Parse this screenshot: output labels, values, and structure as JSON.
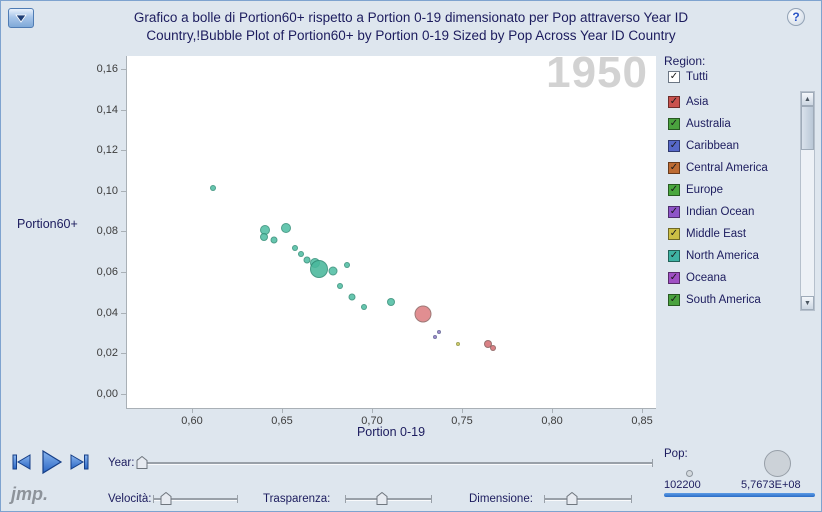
{
  "window": {
    "title_line1": "Grafico a bolle di Portion60+ rispetto a Portion 0-19 dimensionato per Pop attraverso Year ID",
    "title_line2": "Country,!Bubble Plot of Portion60+ by Portion 0-19 Sized by Pop Across Year ID Country",
    "help_glyph": "?"
  },
  "icons": {
    "check_glyph": "✓",
    "scroll_up_glyph": "▲",
    "scroll_down_glyph": "▼"
  },
  "colors": {
    "background": "#dee6ee",
    "title_text": "#1c1c5e",
    "watermark": "#d2d2d2",
    "axis": "#a9b0b6",
    "media_blue": "#2f6fc8",
    "pop_slider": "#2f78d2"
  },
  "chart_data": {
    "type": "scatter",
    "title": "Bubble Plot of Portion60+ by Portion 0-19 Sized by Pop Across Year ID Country",
    "xlabel": "Portion 0-19",
    "ylabel": "Portion60+",
    "watermark": "1950",
    "xlim": [
      0.5639,
      0.8583
    ],
    "ylim": [
      -0.0074,
      0.1664
    ],
    "grid": false,
    "x_ticks": [
      {
        "value": 0.6,
        "label": "0,60"
      },
      {
        "value": 0.65,
        "label": "0,65"
      },
      {
        "value": 0.7,
        "label": "0,70"
      },
      {
        "value": 0.75,
        "label": "0,75"
      },
      {
        "value": 0.8,
        "label": "0,80"
      },
      {
        "value": 0.85,
        "label": "0,85"
      }
    ],
    "y_ticks": [
      {
        "value": 0.0,
        "label": "0,00"
      },
      {
        "value": 0.02,
        "label": "0,02"
      },
      {
        "value": 0.04,
        "label": "0,04"
      },
      {
        "value": 0.06,
        "label": "0,06"
      },
      {
        "value": 0.08,
        "label": "0,08"
      },
      {
        "value": 0.1,
        "label": "0,10"
      },
      {
        "value": 0.12,
        "label": "0,12"
      },
      {
        "value": 0.14,
        "label": "0,14"
      },
      {
        "value": 0.16,
        "label": "0,16"
      }
    ],
    "points": [
      {
        "x": 0.6117,
        "y": 0.1014,
        "r": 3,
        "color": "#52bfa4"
      },
      {
        "x": 0.6406,
        "y": 0.0807,
        "r": 5,
        "color": "#52bfa4"
      },
      {
        "x": 0.64,
        "y": 0.0773,
        "r": 4,
        "color": "#52bfa4"
      },
      {
        "x": 0.6456,
        "y": 0.0758,
        "r": 3.5,
        "color": "#52bfa4"
      },
      {
        "x": 0.6522,
        "y": 0.0817,
        "r": 5,
        "color": "#52bfa4"
      },
      {
        "x": 0.6572,
        "y": 0.0719,
        "r": 3,
        "color": "#52bfa4"
      },
      {
        "x": 0.6606,
        "y": 0.0689,
        "r": 3,
        "color": "#52bfa4"
      },
      {
        "x": 0.6639,
        "y": 0.066,
        "r": 3.5,
        "color": "#52bfa4"
      },
      {
        "x": 0.6683,
        "y": 0.0645,
        "r": 5,
        "color": "#52bfa4"
      },
      {
        "x": 0.6706,
        "y": 0.0615,
        "r": 9,
        "color": "#49b89c"
      },
      {
        "x": 0.6783,
        "y": 0.0606,
        "r": 4.5,
        "color": "#52bfa4"
      },
      {
        "x": 0.6861,
        "y": 0.0635,
        "r": 3,
        "color": "#52bfa4"
      },
      {
        "x": 0.6822,
        "y": 0.0532,
        "r": 3,
        "color": "#52bfa4"
      },
      {
        "x": 0.6889,
        "y": 0.0478,
        "r": 3.5,
        "color": "#52bfa4"
      },
      {
        "x": 0.6956,
        "y": 0.0428,
        "r": 3,
        "color": "#52bfa4"
      },
      {
        "x": 0.7106,
        "y": 0.0453,
        "r": 4,
        "color": "#52bfa4"
      },
      {
        "x": 0.7283,
        "y": 0.0394,
        "r": 8.5,
        "color": "#dd7f82"
      },
      {
        "x": 0.735,
        "y": 0.0281,
        "r": 2,
        "color": "#9b7fd0"
      },
      {
        "x": 0.7372,
        "y": 0.0305,
        "r": 2,
        "color": "#9b7fd0"
      },
      {
        "x": 0.7478,
        "y": 0.0246,
        "r": 2,
        "color": "#ddcb55"
      },
      {
        "x": 0.7644,
        "y": 0.0246,
        "r": 4,
        "color": "#d67075"
      },
      {
        "x": 0.7672,
        "y": 0.0226,
        "r": 3,
        "color": "#d67075"
      }
    ]
  },
  "region_panel": {
    "label": "Region:",
    "all_option": "Tutti",
    "regions": [
      {
        "label": "Asia",
        "color": "#c9524e"
      },
      {
        "label": "Australia",
        "color": "#4aa23e"
      },
      {
        "label": "Caribbean",
        "color": "#5668c9"
      },
      {
        "label": "Central America",
        "color": "#bd6b33"
      },
      {
        "label": "Europe",
        "color": "#4aa73e"
      },
      {
        "label": "Indian Ocean",
        "color": "#8e54c8"
      },
      {
        "label": "Middle East",
        "color": "#ccbf45"
      },
      {
        "label": "North America",
        "color": "#3eb2a3"
      },
      {
        "label": "Oceana",
        "color": "#a050c4"
      },
      {
        "label": "South America",
        "color": "#4aa23e"
      }
    ]
  },
  "controls": {
    "year_label": "Year:",
    "speed_label": "Velocità:",
    "transparency_label": "Trasparenza:",
    "size_label": "Dimensione:",
    "pop_label": "Pop:",
    "pop_min": "102200",
    "pop_max": "5,7673E+08",
    "logo": "jmp.",
    "sliders": {
      "year": 0.01,
      "speed": 0.15,
      "transparency": 0.42,
      "size": 0.32
    }
  }
}
